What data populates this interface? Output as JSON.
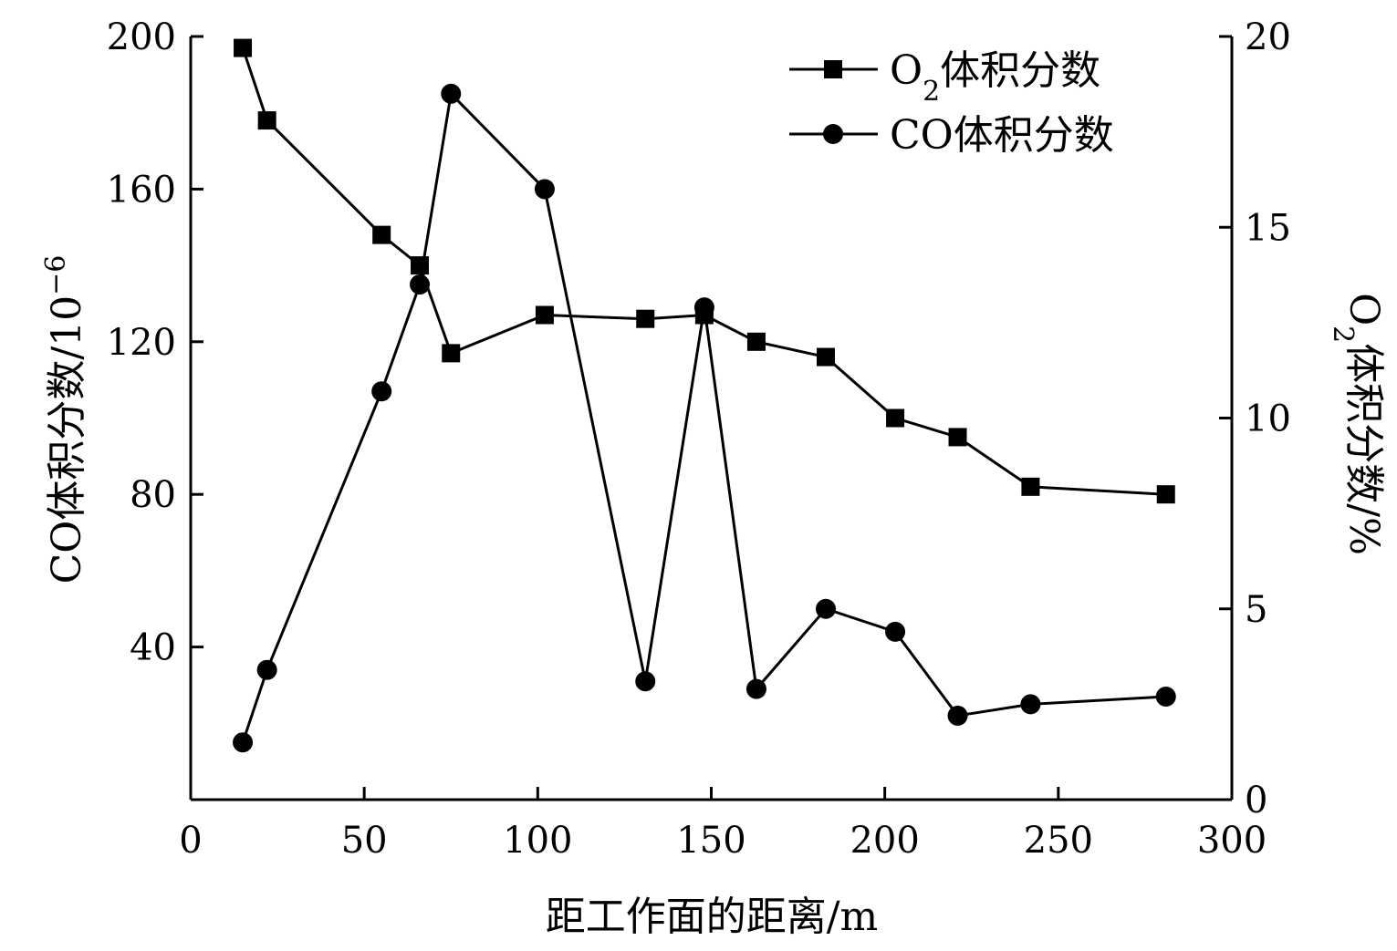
{
  "chart_data": {
    "type": "line",
    "xlabel": "距工作面的距离/m",
    "ylabel_left": "CO体积分数/10",
    "ylabel_left_sup": "−6",
    "ylabel_right_main": "O",
    "ylabel_right_sub": "2",
    "ylabel_right_rest": "体积分数/%",
    "xlim": [
      0,
      300
    ],
    "ylim_left": [
      0,
      200
    ],
    "ylim_right": [
      0,
      20
    ],
    "x_ticks": [
      "0",
      "50",
      "100",
      "150",
      "200",
      "250",
      "300"
    ],
    "y_left_ticks": [
      "40",
      "80",
      "120",
      "160",
      "200"
    ],
    "y_right_ticks": [
      "0",
      "5",
      "10",
      "15",
      "20"
    ],
    "legend_position": "top-right",
    "series": [
      {
        "name_main": "O",
        "name_sub": "2",
        "name_rest": "体积分数",
        "marker": "square",
        "axis": "right",
        "x": [
          15,
          22,
          55,
          66,
          75,
          102,
          131,
          148,
          163,
          183,
          203,
          221,
          242,
          281
        ],
        "y": [
          19.7,
          17.8,
          14.8,
          14.0,
          11.7,
          12.7,
          12.6,
          12.7,
          12.0,
          11.6,
          10.0,
          9.5,
          8.2,
          8.0
        ]
      },
      {
        "name": "CO体积分数",
        "marker": "circle",
        "axis": "left",
        "x": [
          15,
          22,
          55,
          66,
          75,
          102,
          131,
          148,
          163,
          183,
          203,
          221,
          242,
          281
        ],
        "y": [
          15,
          34,
          107,
          135,
          185,
          160,
          31,
          129,
          29,
          50,
          44,
          22,
          25,
          27
        ]
      }
    ]
  }
}
